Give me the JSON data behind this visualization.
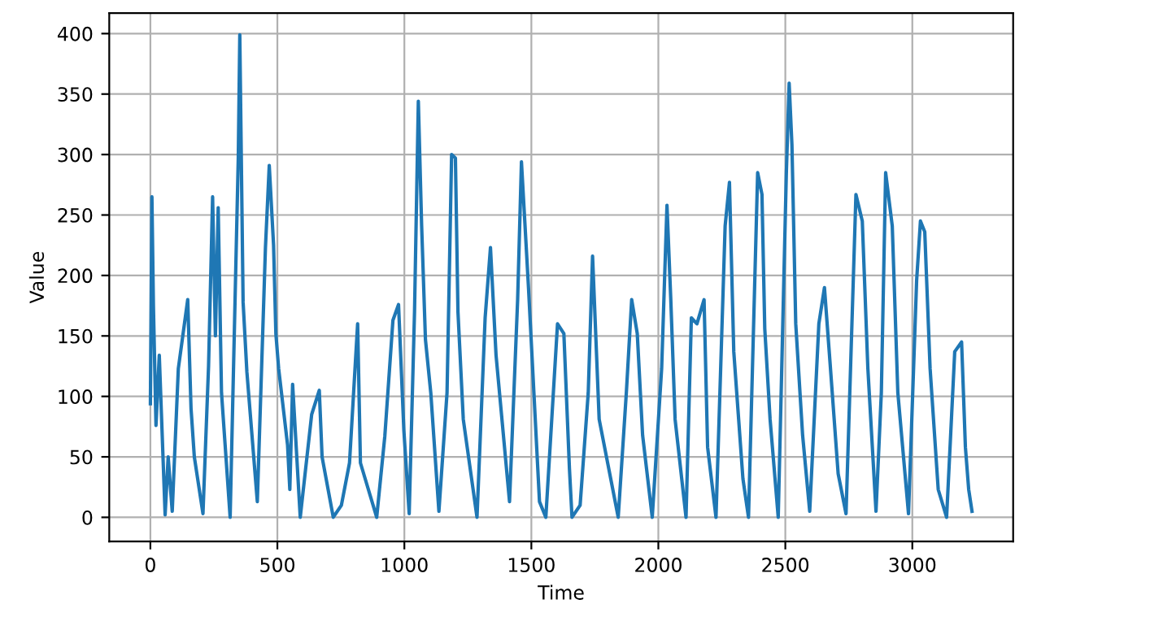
{
  "chart_data": {
    "type": "line",
    "xlabel": "Time",
    "ylabel": "Value",
    "x": [
      0,
      6,
      12,
      22,
      35,
      58,
      70,
      86,
      110,
      147,
      160,
      173,
      207,
      229,
      245,
      256,
      267,
      280,
      314,
      346,
      352,
      365,
      380,
      421,
      453,
      468,
      485,
      494,
      505,
      540,
      549,
      560,
      590,
      635,
      665,
      676,
      720,
      752,
      784,
      816,
      827,
      891,
      923,
      955,
      977,
      998,
      1019,
      1040,
      1055,
      1068,
      1083,
      1104,
      1136,
      1168,
      1186,
      1201,
      1211,
      1232,
      1286,
      1318,
      1339,
      1361,
      1414,
      1446,
      1461,
      1489,
      1510,
      1532,
      1557,
      1603,
      1628,
      1650,
      1660,
      1692,
      1724,
      1741,
      1767,
      1842,
      1874,
      1895,
      1917,
      1938,
      1976,
      2013,
      2034,
      2049,
      2066,
      2109,
      2130,
      2152,
      2180,
      2194,
      2227,
      2263,
      2280,
      2297,
      2333,
      2355,
      2391,
      2408,
      2419,
      2440,
      2472,
      2504,
      2515,
      2526,
      2541,
      2568,
      2596,
      2632,
      2654,
      2676,
      2708,
      2739,
      2778,
      2803,
      2825,
      2857,
      2878,
      2895,
      2921,
      2943,
      2985,
      3017,
      3032,
      3049,
      3070,
      3102,
      3135,
      3167,
      3194,
      3209,
      3222,
      3235
    ],
    "series": [
      {
        "color": "#1f77b4",
        "values": [
          94,
          265,
          174,
          76,
          134,
          2,
          50,
          5,
          123,
          180,
          90,
          50,
          3,
          125,
          265,
          150,
          256,
          103,
          0,
          297,
          399,
          178,
          120,
          13,
          223,
          291,
          225,
          152,
          123,
          60,
          23,
          110,
          0,
          85,
          105,
          50,
          0,
          10,
          45,
          160,
          45,
          0,
          67,
          163,
          176,
          72,
          3,
          170,
          344,
          241,
          147,
          103,
          5,
          103,
          300,
          297,
          170,
          81,
          0,
          165,
          223,
          134,
          13,
          180,
          294,
          189,
          103,
          13,
          0,
          160,
          152,
          40,
          0,
          10,
          103,
          216,
          81,
          0,
          103,
          180,
          152,
          68,
          0,
          123,
          258,
          180,
          81,
          0,
          165,
          160,
          180,
          58,
          0,
          241,
          277,
          137,
          32,
          0,
          285,
          267,
          156,
          81,
          0,
          285,
          359,
          308,
          160,
          68,
          5,
          160,
          190,
          128,
          36,
          3,
          267,
          245,
          123,
          5,
          103,
          285,
          241,
          103,
          3,
          196,
          245,
          236,
          123,
          23,
          0,
          137,
          145,
          58,
          23,
          5
        ]
      }
    ],
    "xlim": [
      -162,
      3397
    ],
    "ylim": [
      -20,
      417
    ],
    "xticks": [
      0,
      500,
      1000,
      1500,
      2000,
      2500,
      3000
    ],
    "yticks": [
      0,
      50,
      100,
      150,
      200,
      250,
      300,
      350,
      400
    ],
    "grid": true
  }
}
